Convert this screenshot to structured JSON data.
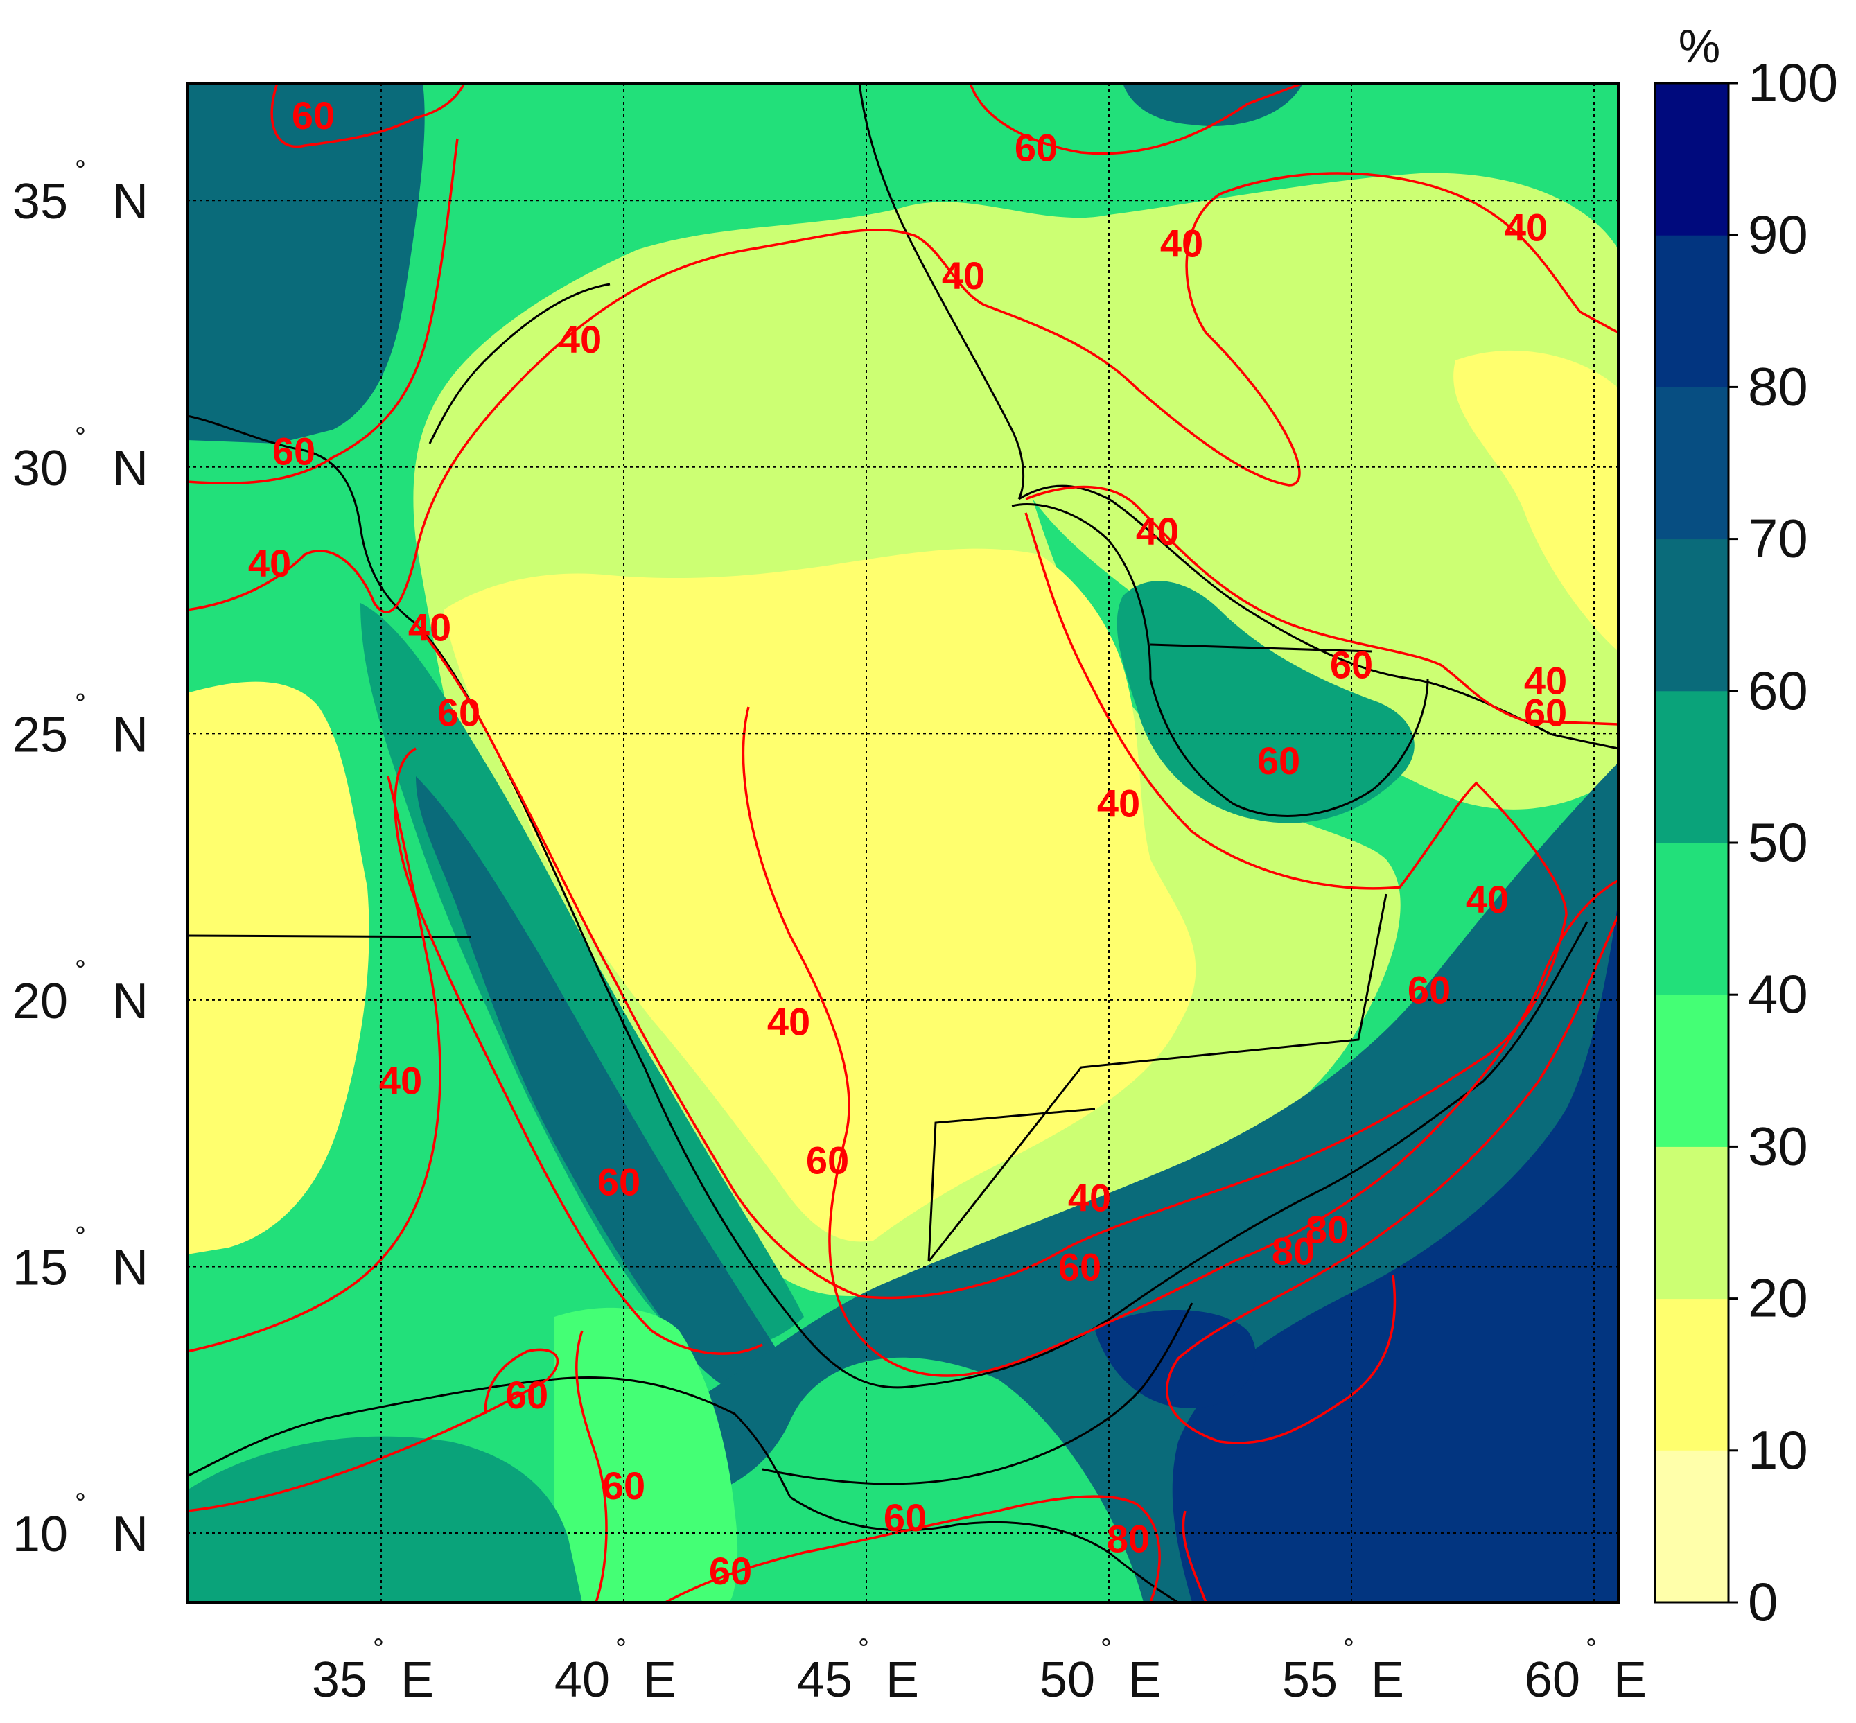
{
  "map": {
    "lon_range": [
      31,
      60.5
    ],
    "lat_range": [
      8.7,
      37.2
    ],
    "lon_ticks": [
      {
        "value": 35,
        "deg": "°",
        "suffix": "E"
      },
      {
        "value": 40,
        "deg": "°",
        "suffix": "E"
      },
      {
        "value": 45,
        "deg": "°",
        "suffix": "E"
      },
      {
        "value": 50,
        "deg": "°",
        "suffix": "E"
      },
      {
        "value": 55,
        "deg": "°",
        "suffix": "E"
      },
      {
        "value": 60,
        "deg": "°",
        "suffix": "E"
      }
    ],
    "lat_ticks": [
      {
        "value": 35,
        "deg": "°",
        "suffix": "N"
      },
      {
        "value": 30,
        "deg": "°",
        "suffix": "N"
      },
      {
        "value": 25,
        "deg": "°",
        "suffix": "N"
      },
      {
        "value": 20,
        "deg": "°",
        "suffix": "N"
      },
      {
        "value": 15,
        "deg": "°",
        "suffix": "N"
      },
      {
        "value": 10,
        "deg": "°",
        "suffix": "N"
      }
    ],
    "gridlines": "dotted",
    "contour_color": "#ff0000",
    "contour_levels_labeled": [
      "40",
      "60",
      "80"
    ],
    "contour_labels": [
      {
        "text": "60",
        "lon": 33.6,
        "lat": 36.6
      },
      {
        "text": "60",
        "lon": 48.5,
        "lat": 36.0
      },
      {
        "text": "40",
        "lon": 51.5,
        "lat": 34.2
      },
      {
        "text": "40",
        "lon": 58.6,
        "lat": 34.5
      },
      {
        "text": "40",
        "lon": 47.0,
        "lat": 33.6
      },
      {
        "text": "40",
        "lon": 39.1,
        "lat": 32.4
      },
      {
        "text": "60",
        "lon": 33.2,
        "lat": 30.3
      },
      {
        "text": "40",
        "lon": 32.7,
        "lat": 28.2
      },
      {
        "text": "40",
        "lon": 36.0,
        "lat": 27.0
      },
      {
        "text": "40",
        "lon": 51.0,
        "lat": 28.8
      },
      {
        "text": "60",
        "lon": 55.0,
        "lat": 26.3
      },
      {
        "text": "40",
        "lon": 59.0,
        "lat": 26.0
      },
      {
        "text": "60",
        "lon": 59.0,
        "lat": 25.4
      },
      {
        "text": "60",
        "lon": 36.6,
        "lat": 25.4
      },
      {
        "text": "60",
        "lon": 53.5,
        "lat": 24.5
      },
      {
        "text": "40",
        "lon": 50.2,
        "lat": 23.7
      },
      {
        "text": "40",
        "lon": 57.8,
        "lat": 21.9
      },
      {
        "text": "60",
        "lon": 56.6,
        "lat": 20.2
      },
      {
        "text": "40",
        "lon": 43.4,
        "lat": 19.6
      },
      {
        "text": "40",
        "lon": 35.4,
        "lat": 18.5
      },
      {
        "text": "60",
        "lon": 44.2,
        "lat": 17.0
      },
      {
        "text": "60",
        "lon": 39.9,
        "lat": 16.6
      },
      {
        "text": "40",
        "lon": 49.6,
        "lat": 16.3
      },
      {
        "text": "60",
        "lon": 49.4,
        "lat": 15.0
      },
      {
        "text": "80",
        "lon": 53.8,
        "lat": 15.3
      },
      {
        "text": "80",
        "lon": 54.5,
        "lat": 15.7
      },
      {
        "text": "60",
        "lon": 38.0,
        "lat": 12.6
      },
      {
        "text": "60",
        "lon": 40.0,
        "lat": 10.9
      },
      {
        "text": "60",
        "lon": 45.8,
        "lat": 10.3
      },
      {
        "text": "60",
        "lon": 42.2,
        "lat": 9.3
      },
      {
        "text": "80",
        "lon": 50.4,
        "lat": 9.9
      }
    ]
  },
  "colorbar": {
    "unit": "%",
    "ticks": [
      "0",
      "10",
      "20",
      "30",
      "40",
      "50",
      "60",
      "70",
      "80",
      "90",
      "100"
    ],
    "colors": [
      "#ffffaa",
      "#fffd86",
      "#ffff6e",
      "#ccff73",
      "#44ff75",
      "#22e07a",
      "#0aa37a",
      "#0a6b7a",
      "#074e82",
      "#023580",
      "#000a7d"
    ]
  }
}
